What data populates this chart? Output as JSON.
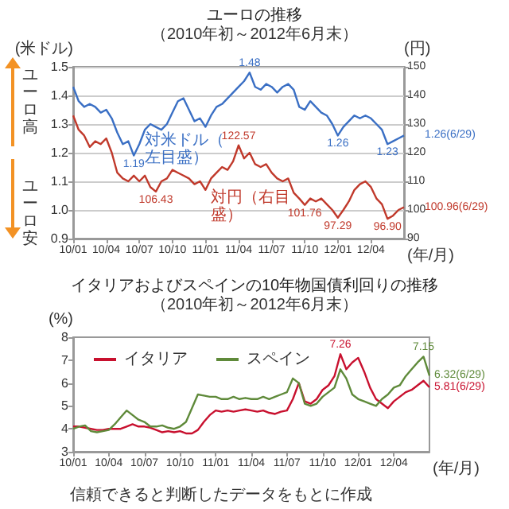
{
  "chart_data": [
    {
      "type": "line",
      "title": "ユーロの推移",
      "subtitle": "（2010年初～2012年6月末）",
      "ylabel": "(米ドル)",
      "y2label": "(円)",
      "xlabel": "(年/月)",
      "categories": [
        "10/01",
        null,
        null,
        null,
        null,
        null,
        "10/04",
        null,
        null,
        null,
        null,
        null,
        "10/07",
        null,
        null,
        null,
        null,
        null,
        "10/10",
        null,
        null,
        null,
        null,
        null,
        "11/01",
        null,
        null,
        null,
        null,
        null,
        "11/04",
        null,
        null,
        null,
        null,
        null,
        "11/07",
        null,
        null,
        null,
        null,
        null,
        "11/10",
        null,
        null,
        null,
        null,
        null,
        "12/01",
        null,
        null,
        null,
        null,
        null,
        "12/04",
        null,
        null,
        null,
        null,
        null,
        null
      ],
      "series": [
        {
          "name": "対米ドル（左目盛）",
          "color": "#3a6fc4",
          "values": [
            1.43,
            1.38,
            1.36,
            1.37,
            1.36,
            1.34,
            1.35,
            1.32,
            1.27,
            1.23,
            1.24,
            1.19,
            1.23,
            1.28,
            1.3,
            1.29,
            1.28,
            1.3,
            1.34,
            1.38,
            1.39,
            1.35,
            1.31,
            1.32,
            1.29,
            1.33,
            1.36,
            1.37,
            1.39,
            1.41,
            1.43,
            1.45,
            1.48,
            1.43,
            1.42,
            1.44,
            1.43,
            1.41,
            1.43,
            1.44,
            1.42,
            1.36,
            1.35,
            1.38,
            1.36,
            1.34,
            1.33,
            1.3,
            1.26,
            1.29,
            1.31,
            1.33,
            1.32,
            1.33,
            1.32,
            1.3,
            1.28,
            1.23,
            1.24,
            1.25,
            1.26
          ],
          "value_labels": [
            null,
            null,
            null,
            null,
            null,
            null,
            null,
            null,
            null,
            null,
            null,
            "1.19",
            null,
            null,
            null,
            null,
            null,
            null,
            null,
            null,
            null,
            null,
            null,
            null,
            null,
            null,
            null,
            null,
            null,
            null,
            null,
            null,
            "1.48",
            null,
            null,
            null,
            null,
            null,
            null,
            null,
            null,
            null,
            null,
            null,
            null,
            null,
            null,
            null,
            "1.26",
            null,
            null,
            null,
            null,
            null,
            null,
            null,
            null,
            "1.23",
            null,
            null,
            "1.26(6/29)"
          ]
        },
        {
          "name": "対円（右目盛）",
          "color": "#c0392b",
          "axis": "y2",
          "values": [
            133,
            128,
            126,
            122,
            124,
            123,
            125,
            120,
            113,
            111,
            110,
            112,
            110,
            112,
            108,
            106.43,
            110,
            111,
            114,
            113,
            112,
            111,
            109,
            110,
            107,
            111,
            113,
            115,
            114,
            117,
            122.57,
            118,
            120,
            116,
            115,
            116,
            113,
            111,
            110,
            111,
            106,
            104,
            101.76,
            104,
            103,
            104,
            102,
            100,
            97.29,
            100,
            103,
            107,
            109,
            110,
            108,
            104,
            102,
            96.9,
            98,
            100,
            100.96
          ],
          "value_labels": [
            null,
            null,
            null,
            null,
            null,
            null,
            null,
            null,
            null,
            null,
            null,
            null,
            null,
            null,
            null,
            "106.43",
            null,
            null,
            null,
            null,
            null,
            null,
            null,
            null,
            null,
            null,
            null,
            null,
            null,
            null,
            "122.57",
            null,
            null,
            null,
            null,
            null,
            null,
            null,
            null,
            null,
            null,
            null,
            "101.76",
            null,
            null,
            null,
            null,
            null,
            "97.29",
            null,
            null,
            null,
            null,
            null,
            null,
            null,
            null,
            "96.90",
            null,
            null,
            "100.96(6/29)"
          ]
        }
      ],
      "ylim": [
        0.9,
        1.5
      ],
      "yticks": [
        0.9,
        {
          "value": 1,
          "label": "1.0"
        },
        1.1,
        1.2,
        1.3,
        1.4,
        1.5
      ],
      "y2lim": [
        90,
        150
      ],
      "y2ticks": [
        90,
        100,
        110,
        120,
        130,
        140,
        150
      ],
      "grid": "y",
      "annotations": [
        "ユーロ高",
        "ユーロ安"
      ]
    },
    {
      "type": "line",
      "title": "イタリアおよびスペインの10年物国債利回りの推移",
      "subtitle": "（2010年初～2012年6月末）",
      "ylabel": "(%)",
      "xlabel": "(年/月)",
      "categories": [
        "10/01",
        null,
        null,
        null,
        null,
        null,
        "10/04",
        null,
        null,
        null,
        null,
        null,
        "10/07",
        null,
        null,
        null,
        null,
        null,
        "10/10",
        null,
        null,
        null,
        null,
        null,
        "11/01",
        null,
        null,
        null,
        null,
        null,
        "11/04",
        null,
        null,
        null,
        null,
        null,
        "11/07",
        null,
        null,
        null,
        null,
        null,
        "11/10",
        null,
        null,
        null,
        null,
        null,
        "12/01",
        null,
        null,
        null,
        null,
        null,
        "12/04",
        null,
        null,
        null,
        null,
        null,
        null
      ],
      "series": [
        {
          "name": "イタリア",
          "color": "#c8102e",
          "values": [
            4.1,
            4.1,
            4.05,
            4.0,
            3.95,
            3.95,
            4.0,
            4.0,
            4.0,
            4.1,
            4.2,
            4.1,
            4.1,
            4.05,
            3.95,
            3.85,
            3.9,
            3.85,
            3.9,
            3.8,
            3.8,
            3.95,
            4.3,
            4.6,
            4.8,
            4.75,
            4.8,
            4.75,
            4.8,
            4.85,
            4.8,
            4.75,
            4.8,
            4.7,
            4.65,
            4.75,
            4.8,
            5.3,
            6.0,
            5.2,
            5.1,
            5.3,
            5.7,
            5.9,
            6.3,
            7.26,
            6.6,
            6.9,
            7.1,
            6.5,
            5.8,
            5.3,
            5.1,
            4.9,
            5.2,
            5.4,
            5.6,
            5.7,
            5.9,
            6.1,
            5.81
          ],
          "value_labels": [
            null,
            null,
            null,
            null,
            null,
            null,
            null,
            null,
            null,
            null,
            null,
            null,
            null,
            null,
            null,
            null,
            null,
            null,
            null,
            null,
            null,
            null,
            null,
            null,
            null,
            null,
            null,
            null,
            null,
            null,
            null,
            null,
            null,
            null,
            null,
            null,
            null,
            null,
            null,
            null,
            null,
            null,
            null,
            null,
            null,
            "7.26",
            null,
            null,
            null,
            null,
            null,
            null,
            null,
            null,
            null,
            null,
            null,
            null,
            null,
            null,
            "5.81(6/29)"
          ]
        },
        {
          "name": "スペイン",
          "color": "#5f8a3a",
          "values": [
            4.0,
            4.1,
            4.15,
            3.9,
            3.85,
            3.9,
            3.95,
            4.2,
            4.5,
            4.8,
            4.6,
            4.4,
            4.3,
            4.1,
            4.1,
            4.15,
            4.05,
            4.0,
            4.1,
            4.3,
            4.9,
            5.5,
            5.45,
            5.4,
            5.4,
            5.3,
            5.3,
            5.4,
            5.3,
            5.35,
            5.3,
            5.3,
            5.4,
            5.3,
            5.4,
            5.5,
            5.6,
            6.2,
            6.0,
            5.1,
            5.0,
            5.1,
            5.4,
            5.6,
            5.8,
            6.6,
            6.2,
            5.5,
            5.3,
            5.2,
            5.1,
            5.0,
            5.3,
            5.5,
            5.8,
            5.9,
            6.3,
            6.6,
            6.9,
            7.15,
            6.32
          ],
          "value_labels": [
            null,
            null,
            null,
            null,
            null,
            null,
            null,
            null,
            null,
            null,
            null,
            null,
            null,
            null,
            null,
            null,
            null,
            null,
            null,
            null,
            null,
            null,
            null,
            null,
            null,
            null,
            null,
            null,
            null,
            null,
            null,
            null,
            null,
            null,
            null,
            null,
            null,
            null,
            null,
            null,
            null,
            null,
            null,
            null,
            null,
            null,
            null,
            null,
            null,
            null,
            null,
            null,
            null,
            null,
            null,
            null,
            null,
            null,
            null,
            "7.15",
            "6.32(6/29)"
          ]
        }
      ],
      "ylim": [
        3,
        8
      ],
      "yticks": [
        3,
        4,
        5,
        6,
        7,
        8
      ],
      "legend": "top left",
      "annotations": [
        "信頼できると判断したデータをもとに作成"
      ]
    }
  ]
}
